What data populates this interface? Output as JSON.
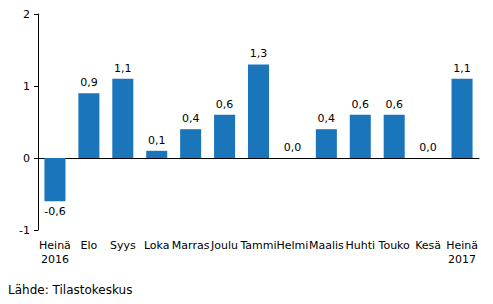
{
  "chart_data": {
    "type": "bar",
    "categories": [
      "Heinä\n2016",
      "Elo",
      "Syys",
      "Loka",
      "Marras",
      "Joulu",
      "Tammi",
      "Helmi",
      "Maalis",
      "Huhti",
      "Touko",
      "Kesä",
      "Heinä\n2017"
    ],
    "values": [
      -0.6,
      0.9,
      1.1,
      0.1,
      0.4,
      0.6,
      1.3,
      0.0,
      0.4,
      0.6,
      0.6,
      0.0,
      1.1
    ],
    "value_labels": [
      "-0,6",
      "0,9",
      "1,1",
      "0,1",
      "0,4",
      "0,6",
      "1,3",
      "0,0",
      "0,4",
      "0,6",
      "0,6",
      "0,0",
      "1,1"
    ],
    "data_labels": true,
    "color": "#1b75bb",
    "ylim": [
      -1,
      2
    ],
    "yticks": [
      -1,
      0,
      1,
      2
    ],
    "grid": false,
    "source": "Lähde: Tilastokeskus"
  }
}
